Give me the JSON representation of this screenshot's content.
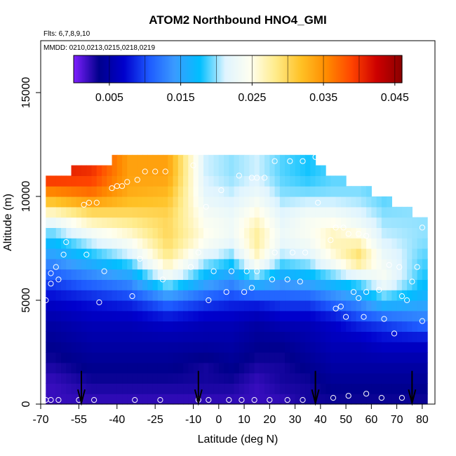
{
  "chart_data": {
    "type": "heatmap",
    "title": "ATOM2 Northbound HNO4_GMI",
    "subtitle_flights": "Flts: 6,7,8,9,10",
    "subtitle_dates": "MMDD: 0210,0213,0215,0218,0219",
    "xlabel": "Latitude (deg N)",
    "ylabel": "Altitude (m)",
    "xlim": [
      -70,
      85
    ],
    "ylim": [
      0,
      17500
    ],
    "x_ticks": [
      -70,
      -55,
      -40,
      -25,
      -10,
      0,
      10,
      20,
      30,
      40,
      50,
      60,
      70,
      80
    ],
    "y_ticks": [
      0,
      5000,
      10000,
      15000
    ],
    "colorbar": {
      "range": [
        0,
        0.046
      ],
      "ticks": [
        0.005,
        0.015,
        0.025,
        0.035,
        0.045
      ],
      "tick_labels": [
        "0.005",
        "0.015",
        "0.025",
        "0.035",
        "0.045"
      ],
      "colors": [
        "#7f1fff",
        "#00008b",
        "#0000cd",
        "#1e5bff",
        "#3a9bff",
        "#00bfff",
        "#dff4ff",
        "#fffff0",
        "#ffeb8a",
        "#ffc125",
        "#ff8c00",
        "#ff4500",
        "#cd0000",
        "#8b0000"
      ]
    },
    "flight_markers_lat": [
      -54,
      -8,
      38,
      76
    ],
    "profiles": [
      {
        "lat": -65,
        "top": 11000,
        "v": [
          0.002,
          0.002,
          0.003,
          0.004,
          0.005,
          0.007,
          0.01,
          0.014,
          0.018,
          0.024,
          0.034,
          0.041
        ]
      },
      {
        "lat": -50,
        "top": 11500,
        "v": [
          0.002,
          0.003,
          0.004,
          0.005,
          0.006,
          0.008,
          0.012,
          0.017,
          0.022,
          0.028,
          0.036,
          0.04
        ]
      },
      {
        "lat": -35,
        "top": 12000,
        "v": [
          0.002,
          0.003,
          0.004,
          0.005,
          0.006,
          0.009,
          0.014,
          0.02,
          0.025,
          0.029,
          0.033,
          0.034
        ]
      },
      {
        "lat": -20,
        "top": 12000,
        "v": [
          0.002,
          0.003,
          0.004,
          0.005,
          0.007,
          0.012,
          0.022,
          0.028,
          0.03,
          0.03,
          0.032,
          0.034
        ]
      },
      {
        "lat": -5,
        "top": 12000,
        "v": [
          0.002,
          0.003,
          0.003,
          0.005,
          0.006,
          0.01,
          0.016,
          0.021,
          0.025,
          0.024,
          0.022,
          0.021
        ]
      },
      {
        "lat": 5,
        "top": 12000,
        "v": [
          0.002,
          0.003,
          0.004,
          0.005,
          0.006,
          0.009,
          0.014,
          0.019,
          0.023,
          0.023,
          0.021,
          0.02
        ]
      },
      {
        "lat": 15,
        "top": 12000,
        "v": [
          0.002,
          0.002,
          0.003,
          0.004,
          0.005,
          0.009,
          0.018,
          0.026,
          0.028,
          0.026,
          0.023,
          0.021
        ]
      },
      {
        "lat": 25,
        "top": 12000,
        "v": [
          0.002,
          0.003,
          0.003,
          0.004,
          0.006,
          0.01,
          0.015,
          0.02,
          0.023,
          0.022,
          0.02,
          0.019
        ]
      },
      {
        "lat": 35,
        "top": 12000,
        "v": [
          0.003,
          0.003,
          0.004,
          0.005,
          0.006,
          0.01,
          0.016,
          0.021,
          0.024,
          0.024,
          0.02,
          0.018
        ]
      },
      {
        "lat": 45,
        "top": 11000,
        "v": [
          0.003,
          0.004,
          0.005,
          0.006,
          0.007,
          0.012,
          0.018,
          0.025,
          0.027,
          0.024,
          0.02,
          0.019
        ]
      },
      {
        "lat": 55,
        "top": 10500,
        "v": [
          0.003,
          0.004,
          0.005,
          0.006,
          0.009,
          0.014,
          0.02,
          0.03,
          0.026,
          0.022,
          0.02,
          0.019
        ]
      },
      {
        "lat": 65,
        "top": 10000,
        "v": [
          0.003,
          0.004,
          0.005,
          0.007,
          0.01,
          0.018,
          0.024,
          0.023,
          0.021,
          0.02,
          0.019,
          0.019
        ]
      },
      {
        "lat": 80,
        "top": 9000,
        "v": [
          0.003,
          0.004,
          0.005,
          0.007,
          0.012,
          0.016,
          0.018,
          0.019,
          0.02,
          0.02,
          0.02,
          0.02
        ]
      }
    ],
    "profile_altitudes": [
      0,
      1000,
      2000,
      3000,
      4000,
      5000,
      6000,
      7000,
      8000,
      9000,
      10000,
      11000
    ],
    "points": [
      [
        -68,
        200
      ],
      [
        -66,
        200
      ],
      [
        -63,
        200
      ],
      [
        -55,
        200
      ],
      [
        -49,
        200
      ],
      [
        -33,
        200
      ],
      [
        -23,
        200
      ],
      [
        -8,
        200
      ],
      [
        -4,
        200
      ],
      [
        4,
        200
      ],
      [
        9,
        200
      ],
      [
        14,
        200
      ],
      [
        20,
        200
      ],
      [
        27,
        200
      ],
      [
        33,
        200
      ],
      [
        45,
        300
      ],
      [
        51,
        400
      ],
      [
        58,
        500
      ],
      [
        64,
        300
      ],
      [
        72,
        300
      ],
      [
        -68,
        5000
      ],
      [
        -66,
        5800
      ],
      [
        -63,
        6000
      ],
      [
        -61,
        7200
      ],
      [
        -52,
        7200
      ],
      [
        -47,
        4900
      ],
      [
        -45,
        6400
      ],
      [
        -34,
        5200
      ],
      [
        -31,
        7000
      ],
      [
        -22,
        6000
      ],
      [
        -11,
        6600
      ],
      [
        -8,
        7300
      ],
      [
        -4,
        5000
      ],
      [
        -2,
        6400
      ],
      [
        3,
        5400
      ],
      [
        5,
        6400
      ],
      [
        10,
        5400
      ],
      [
        11,
        6400
      ],
      [
        13,
        5600
      ],
      [
        15,
        6400
      ],
      [
        21,
        6000
      ],
      [
        22,
        7300
      ],
      [
        27,
        6000
      ],
      [
        29,
        7300
      ],
      [
        32,
        5900
      ],
      [
        34,
        7300
      ],
      [
        46,
        4600
      ],
      [
        48,
        4700
      ],
      [
        50,
        4200
      ],
      [
        53,
        5400
      ],
      [
        55,
        5100
      ],
      [
        57,
        4200
      ],
      [
        58,
        5400
      ],
      [
        63,
        5500
      ],
      [
        65,
        4100
      ],
      [
        67,
        6700
      ],
      [
        69,
        3400
      ],
      [
        71,
        6600
      ],
      [
        72,
        5200
      ],
      [
        74,
        5000
      ],
      [
        76,
        5900
      ],
      [
        78,
        6600
      ],
      [
        80,
        4000
      ],
      [
        80,
        8500
      ],
      [
        -66,
        6300
      ],
      [
        -64,
        6600
      ],
      [
        -60,
        7800
      ],
      [
        -53,
        9600
      ],
      [
        -51,
        9700
      ],
      [
        -48,
        9700
      ],
      [
        -42,
        10400
      ],
      [
        -40,
        10500
      ],
      [
        -38,
        10500
      ],
      [
        -36,
        10700
      ],
      [
        -32,
        10800
      ],
      [
        -29,
        11200
      ],
      [
        -25,
        11200
      ],
      [
        -21,
        11200
      ],
      [
        -10,
        11500
      ],
      [
        -5,
        9500
      ],
      [
        1,
        10300
      ],
      [
        8,
        11000
      ],
      [
        13,
        10900
      ],
      [
        15,
        10900
      ],
      [
        18,
        10900
      ],
      [
        22,
        11700
      ],
      [
        28,
        11700
      ],
      [
        33,
        11700
      ],
      [
        38,
        11900
      ],
      [
        39,
        9700
      ],
      [
        44,
        7900
      ],
      [
        46,
        8500
      ],
      [
        49,
        8500
      ],
      [
        51,
        8200
      ],
      [
        55,
        8200
      ],
      [
        58,
        8100
      ]
    ]
  }
}
